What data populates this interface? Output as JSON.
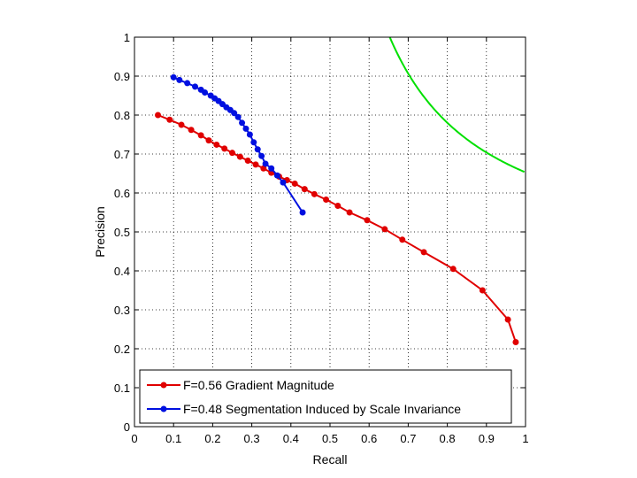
{
  "chart_data": {
    "type": "line",
    "xlabel": "Recall",
    "ylabel": "Precision",
    "xlim": [
      0,
      1
    ],
    "ylim": [
      0,
      1
    ],
    "xticks": [
      "0",
      "0.1",
      "0.2",
      "0.3",
      "0.4",
      "0.5",
      "0.6",
      "0.7",
      "0.8",
      "0.9",
      "1"
    ],
    "yticks": [
      "0",
      "0.1",
      "0.2",
      "0.3",
      "0.4",
      "0.5",
      "0.6",
      "0.7",
      "0.8",
      "0.9",
      "1"
    ],
    "grid": true,
    "legend_position": "bottom-left",
    "iso_f_curve": {
      "f": 0.79,
      "color": "#00e000"
    },
    "series": [
      {
        "name": "F=0.56 Gradient Magnitude",
        "color": "#e00000",
        "x": [
          0.06,
          0.09,
          0.12,
          0.145,
          0.17,
          0.19,
          0.21,
          0.23,
          0.25,
          0.27,
          0.29,
          0.31,
          0.33,
          0.35,
          0.37,
          0.39,
          0.41,
          0.435,
          0.46,
          0.49,
          0.52,
          0.55,
          0.595,
          0.64,
          0.685,
          0.74,
          0.815,
          0.89,
          0.955,
          0.975
        ],
        "y": [
          0.8,
          0.788,
          0.775,
          0.762,
          0.748,
          0.735,
          0.724,
          0.714,
          0.703,
          0.693,
          0.683,
          0.673,
          0.663,
          0.652,
          0.642,
          0.633,
          0.624,
          0.61,
          0.597,
          0.583,
          0.567,
          0.55,
          0.53,
          0.507,
          0.48,
          0.448,
          0.405,
          0.35,
          0.275,
          0.217
        ]
      },
      {
        "name": "F=0.48 Segmentation Induced by Scale Invariance",
        "color": "#0010e0",
        "x": [
          0.1,
          0.115,
          0.135,
          0.155,
          0.17,
          0.18,
          0.195,
          0.205,
          0.215,
          0.225,
          0.235,
          0.245,
          0.255,
          0.265,
          0.275,
          0.285,
          0.295,
          0.305,
          0.315,
          0.325,
          0.335,
          0.35,
          0.365,
          0.38,
          0.43
        ],
        "y": [
          0.897,
          0.89,
          0.882,
          0.873,
          0.865,
          0.858,
          0.85,
          0.843,
          0.836,
          0.828,
          0.82,
          0.813,
          0.805,
          0.795,
          0.78,
          0.765,
          0.75,
          0.73,
          0.712,
          0.695,
          0.675,
          0.663,
          0.645,
          0.627,
          0.55
        ]
      }
    ]
  }
}
